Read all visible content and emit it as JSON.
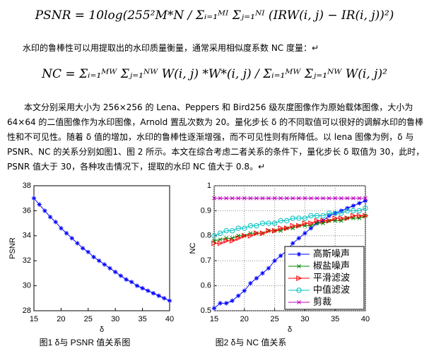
{
  "formulas": [
    "PSNR = 10log(255²M*N / Σᵢ₌₁ᴹᴵ Σⱼ₌₁ᴺᴵ (IRW(i, j) − IR(i, j))²)",
    "NC = Σᵢ₌₁ᴹᵂ Σⱼ₌₁ᴺᵂ W(i, j) *W*(i, j) / Σᵢ₌₁ᴹᵂ Σⱼ₌₁ᴺᵂ W(i, j)²"
  ],
  "paragraphs": [
    "水印的鲁棒性可以用提取出的水印质量衡量，通常采用相似度系数 NC 度量：↵",
    "本文分别采用大小为 256×256 的 Lena、Peppers 和 Bird256 级灰度图像作为原始载体图像，大小为 64×64 的二值图像作为水印图像，Arnold 置乱次数为 20。量化步长 δ 的不同取值可以很好的调解水印的鲁棒性和不可见性。随着 δ 值的增加，水印的鲁棒性逐渐增强，而不可见性则有所降低。以 lena 图像为例，δ 与 PSNR、NC 的关系分别如图1、图 2 所示。本文在综合考虑二者关系的条件下，量化步长 δ 取值为 30，此时，PSNR 值大于 30，各种攻击情况下，提取的水印 NC 值大于 0.8。↵"
  ],
  "captions": [
    "图1  δ与 PSNR 值关系图",
    "图2  δ与 NC 值关系"
  ],
  "chart_data": [
    {
      "type": "line",
      "x_label": "δ",
      "y_label": "PSNR",
      "grid": false,
      "x": [
        15,
        16,
        17,
        18,
        19,
        20,
        21,
        22,
        23,
        24,
        25,
        26,
        27,
        28,
        29,
        30,
        31,
        32,
        33,
        34,
        35,
        36,
        37,
        38,
        39,
        40
      ],
      "series": [
        {
          "name": null,
          "color": "#0000ff",
          "marker": "star",
          "values": [
            37.0,
            36.5,
            36.0,
            35.5,
            35.1,
            34.6,
            34.2,
            33.8,
            33.4,
            33.0,
            32.7,
            32.3,
            32.0,
            31.7,
            31.4,
            31.1,
            30.8,
            30.5,
            30.3,
            30.0,
            29.8,
            29.6,
            29.4,
            29.2,
            29.0,
            28.8
          ]
        }
      ],
      "xlim": [
        15,
        40
      ],
      "xticks": [
        15,
        20,
        25,
        30,
        35,
        40
      ],
      "ylim": [
        28,
        38
      ],
      "yticks": [
        28,
        30,
        32,
        34,
        36,
        38
      ]
    },
    {
      "type": "line",
      "x_label": "δ",
      "y_label": "NC",
      "grid": true,
      "legend": "lower right",
      "x": [
        15,
        16,
        17,
        18,
        19,
        20,
        21,
        22,
        23,
        24,
        25,
        26,
        27,
        28,
        29,
        30,
        31,
        32,
        33,
        34,
        35,
        36,
        37,
        38,
        39,
        40
      ],
      "series": [
        {
          "name": "高斯噪声",
          "color": "#0000ff",
          "marker": "star",
          "values": [
            0.51,
            0.53,
            0.53,
            0.54,
            0.56,
            0.58,
            0.61,
            0.63,
            0.65,
            0.67,
            0.7,
            0.72,
            0.74,
            0.77,
            0.79,
            0.81,
            0.83,
            0.85,
            0.86,
            0.88,
            0.89,
            0.9,
            0.91,
            0.92,
            0.93,
            0.94
          ]
        },
        {
          "name": "椒盐噪声",
          "color": "#008000",
          "marker": "x",
          "values": [
            0.78,
            0.785,
            0.79,
            0.79,
            0.8,
            0.8,
            0.81,
            0.81,
            0.81,
            0.82,
            0.82,
            0.82,
            0.83,
            0.83,
            0.84,
            0.84,
            0.84,
            0.85,
            0.85,
            0.86,
            0.86,
            0.86,
            0.87,
            0.87,
            0.87,
            0.88
          ]
        },
        {
          "name": "平滑滤波",
          "color": "#ff0000",
          "marker": "triangle",
          "values": [
            0.77,
            0.77,
            0.78,
            0.78,
            0.79,
            0.8,
            0.8,
            0.81,
            0.81,
            0.82,
            0.82,
            0.83,
            0.83,
            0.84,
            0.84,
            0.85,
            0.85,
            0.86,
            0.86,
            0.86,
            0.87,
            0.87,
            0.87,
            0.88,
            0.88,
            0.88
          ]
        },
        {
          "name": "中值滤波",
          "color": "#00bfbf",
          "marker": "circle",
          "values": [
            0.8,
            0.81,
            0.82,
            0.82,
            0.83,
            0.83,
            0.84,
            0.84,
            0.85,
            0.85,
            0.85,
            0.86,
            0.86,
            0.87,
            0.87,
            0.87,
            0.88,
            0.88,
            0.88,
            0.89,
            0.89,
            0.89,
            0.9,
            0.9,
            0.9,
            0.91
          ]
        },
        {
          "name": "剪裁",
          "color": "#bf00bf",
          "marker": "x",
          "values": [
            0.95,
            0.95,
            0.95,
            0.95,
            0.95,
            0.95,
            0.95,
            0.95,
            0.95,
            0.95,
            0.95,
            0.95,
            0.95,
            0.95,
            0.95,
            0.95,
            0.95,
            0.95,
            0.95,
            0.95,
            0.95,
            0.95,
            0.95,
            0.95,
            0.95,
            0.95
          ]
        }
      ],
      "xlim": [
        15,
        40
      ],
      "xticks": [
        15,
        20,
        25,
        30,
        35,
        40
      ],
      "ylim": [
        0.5,
        1
      ],
      "yticks": [
        0.5,
        0.6,
        0.7,
        0.8,
        0.9,
        1
      ]
    }
  ]
}
